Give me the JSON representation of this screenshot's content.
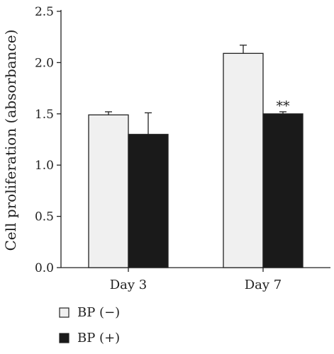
{
  "chart_data": {
    "type": "bar",
    "title": "",
    "xlabel": "",
    "ylabel": "Cell proliferation (absorbance)",
    "ylim": [
      0,
      2.5
    ],
    "yticks": [
      "0.0",
      "0.5",
      "1.0",
      "1.5",
      "2.0",
      "2.5"
    ],
    "categories": [
      "Day 3",
      "Day 7"
    ],
    "series": [
      {
        "name": "BP (−)",
        "values": [
          1.49,
          2.09
        ],
        "errors": [
          0.03,
          0.08
        ],
        "color": "#f0f0f0"
      },
      {
        "name": "BP (+)",
        "values": [
          1.3,
          1.5
        ],
        "errors": [
          0.21,
          0.02
        ],
        "color": "#1a1a1a"
      }
    ],
    "annotations": [
      {
        "category": "Day 7",
        "series": 1,
        "text": "**"
      }
    ],
    "legend_position": "bottom-left",
    "grid": false
  }
}
